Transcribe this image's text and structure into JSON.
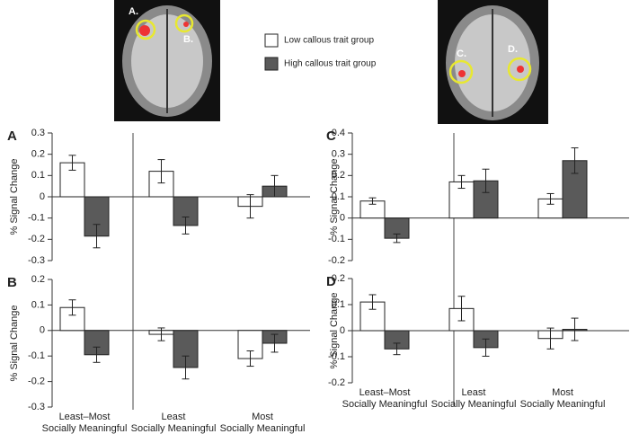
{
  "chart_data": [
    {
      "type": "bar",
      "label": "A",
      "ylabel": "% Signal Change",
      "categories": [
        null,
        null,
        null
      ],
      "series": [
        {
          "name": "Low callous trait group",
          "color": "#ffffff",
          "values": [
            0.16,
            0.12,
            -0.045
          ],
          "errors": [
            0.035,
            0.055,
            0.055
          ]
        },
        {
          "name": "High callous trait group",
          "color": "#5a5a5a",
          "values": [
            -0.185,
            -0.135,
            0.05
          ],
          "errors": [
            0.055,
            0.04,
            0.05
          ]
        }
      ],
      "ylim": [
        -0.3,
        0.3
      ],
      "yticks": [
        -0.3,
        -0.2,
        -0.1,
        0,
        0.1,
        0.2,
        0.3
      ]
    },
    {
      "type": "bar",
      "label": "B",
      "ylabel": "% Signal Change",
      "categories": [
        "Least–Most\nSocially Meaningful",
        "Least\nSocially Meaningful",
        "Most\nSocially Meaningful"
      ],
      "series": [
        {
          "color": "#ffffff",
          "values": [
            0.09,
            -0.015,
            -0.11
          ],
          "errors": [
            0.03,
            0.025,
            0.03
          ]
        },
        {
          "color": "#5a5a5a",
          "values": [
            -0.095,
            -0.145,
            -0.05
          ],
          "errors": [
            0.03,
            0.045,
            0.035
          ]
        }
      ],
      "ylim": [
        -0.3,
        0.2
      ],
      "yticks": [
        -0.3,
        -0.2,
        -0.1,
        0,
        0.1,
        0.2
      ]
    },
    {
      "type": "bar",
      "label": "C",
      "ylabel": "% Signal Change",
      "categories": [
        null,
        null,
        null
      ],
      "series": [
        {
          "color": "#ffffff",
          "values": [
            0.08,
            0.17,
            0.09
          ],
          "errors": [
            0.015,
            0.03,
            0.025
          ]
        },
        {
          "color": "#5a5a5a",
          "values": [
            -0.095,
            0.175,
            0.27
          ],
          "errors": [
            0.02,
            0.055,
            0.06
          ]
        }
      ],
      "ylim": [
        -0.2,
        0.4
      ],
      "yticks": [
        -0.2,
        -0.1,
        0,
        0.1,
        0.2,
        0.3,
        0.4
      ]
    },
    {
      "type": "bar",
      "label": "D",
      "ylabel": "% Signal Change",
      "categories": [
        "Least–Most\nSocially Meaningful",
        "Least\nSocially Meaningful",
        "Most\nSocially Meaningful"
      ],
      "series": [
        {
          "color": "#ffffff",
          "values": [
            0.11,
            0.085,
            -0.03
          ],
          "errors": [
            0.028,
            0.047,
            0.04
          ]
        },
        {
          "color": "#5a5a5a",
          "values": [
            -0.07,
            -0.065,
            0.005
          ],
          "errors": [
            0.022,
            0.033,
            0.043
          ]
        }
      ],
      "ylim": [
        -0.2,
        0.2
      ],
      "yticks": [
        -0.2,
        -0.1,
        0,
        0.1,
        0.2
      ]
    }
  ],
  "images": [
    {
      "labels": [
        "A.",
        "B."
      ]
    },
    {
      "labels": [
        "C.",
        "D."
      ]
    }
  ]
}
